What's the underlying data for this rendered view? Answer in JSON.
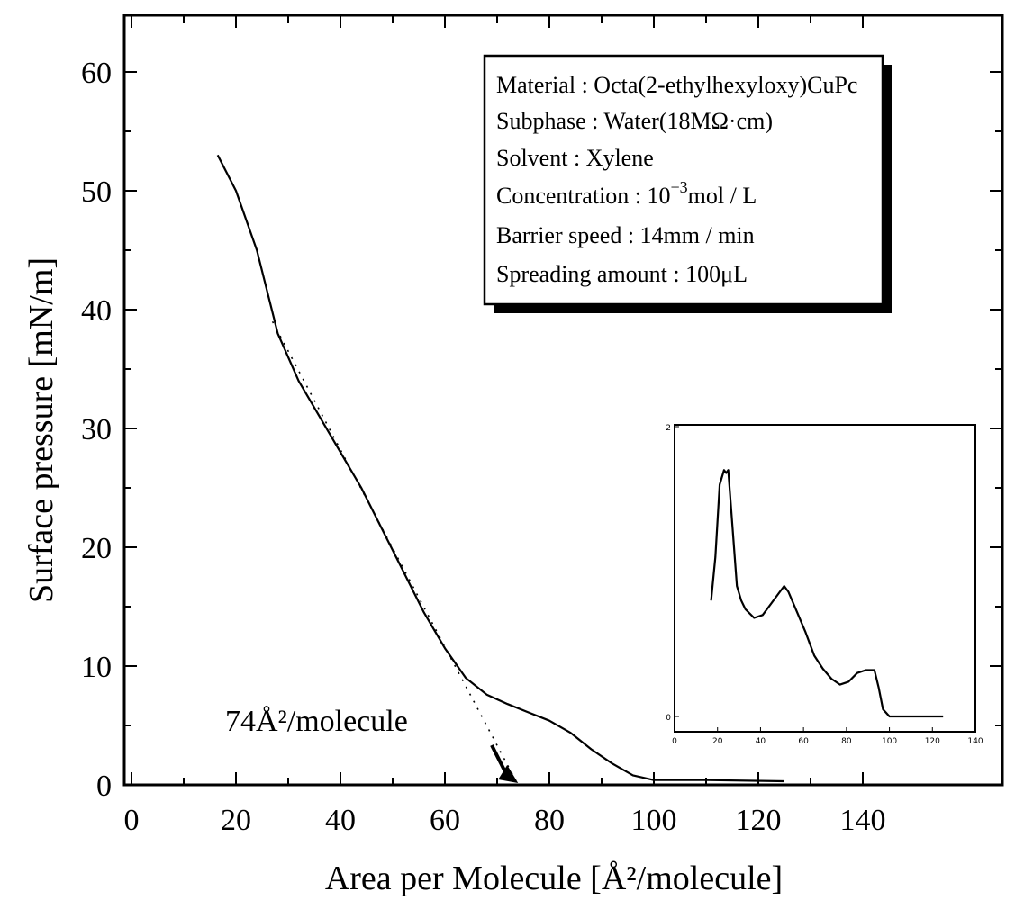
{
  "chart_data": {
    "type": "line",
    "xlabel": "Area per Molecule [Å²/molecule]",
    "ylabel": "Surface pressure [mN/m]",
    "xlim": [
      0,
      150
    ],
    "ylim": [
      0,
      65
    ],
    "x_ticks": [
      "0",
      "20",
      "40",
      "60",
      "80",
      "100",
      "120",
      "140"
    ],
    "y_ticks": [
      "0",
      "10",
      "20",
      "30",
      "40",
      "50",
      "60"
    ],
    "grid": false,
    "info_box": {
      "placement": "top-right",
      "lines": [
        {
          "label": "Material",
          "value": "Octa(2-ethylhexyloxy)CuPc"
        },
        {
          "label": "Subphase",
          "value": "Water(18MΩ·cm)"
        },
        {
          "label": "Solvent",
          "value": "Xylene"
        },
        {
          "label": "Concentration",
          "value": "10",
          "sup": "−3",
          "after": "mol / L"
        },
        {
          "label": "Barrier speed",
          "value": "14mm / min"
        },
        {
          "label": "Spreading amount",
          "value": "100μL"
        }
      ]
    },
    "annotation": {
      "text": "74Å²/molecule",
      "points_to_x": 74,
      "points_to_y": 0
    },
    "series": [
      {
        "values": [
          [
            16.5,
            53
          ],
          [
            20,
            50
          ],
          [
            24,
            45
          ],
          [
            28,
            38
          ],
          [
            32,
            34
          ],
          [
            36,
            31
          ],
          [
            40,
            28
          ],
          [
            44,
            25
          ],
          [
            48,
            21.5
          ],
          [
            52,
            18
          ],
          [
            56,
            14.5
          ],
          [
            60,
            11.5
          ],
          [
            64,
            9
          ],
          [
            68,
            7.6
          ],
          [
            72,
            6.8
          ],
          [
            76,
            6.1
          ],
          [
            80,
            5.4
          ],
          [
            84,
            4.4
          ],
          [
            88,
            3
          ],
          [
            92,
            1.8
          ],
          [
            96,
            0.8
          ],
          [
            100,
            0.4
          ],
          [
            110,
            0.4
          ],
          [
            125,
            0.3
          ]
        ]
      }
    ],
    "extrapolation": {
      "style": "dotted",
      "values": [
        [
          27,
          39
        ],
        [
          74,
          0
        ]
      ]
    },
    "inset": {
      "placement": "bottom-right",
      "x_ticks": [
        "0",
        "20",
        "40",
        "60",
        "80",
        "100",
        "120",
        "140"
      ],
      "y_ticks": [
        "0",
        "2"
      ],
      "xlim": [
        0,
        140
      ],
      "ylim": [
        0,
        2
      ],
      "series": [
        {
          "values": [
            [
              17,
              0.8
            ],
            [
              19,
              1.1
            ],
            [
              21,
              1.6
            ],
            [
              23,
              1.7
            ],
            [
              24,
              1.68
            ],
            [
              25,
              1.7
            ],
            [
              27,
              1.3
            ],
            [
              29,
              0.9
            ],
            [
              31,
              0.8
            ],
            [
              33,
              0.74
            ],
            [
              37,
              0.68
            ],
            [
              41,
              0.7
            ],
            [
              45,
              0.78
            ],
            [
              49,
              0.86
            ],
            [
              51,
              0.9
            ],
            [
              53,
              0.86
            ],
            [
              57,
              0.72
            ],
            [
              61,
              0.58
            ],
            [
              65,
              0.42
            ],
            [
              69,
              0.33
            ],
            [
              73,
              0.26
            ],
            [
              77,
              0.22
            ],
            [
              81,
              0.24
            ],
            [
              85,
              0.3
            ],
            [
              89,
              0.32
            ],
            [
              93,
              0.32
            ],
            [
              95,
              0.2
            ],
            [
              97,
              0.05
            ],
            [
              100,
              0.0
            ],
            [
              110,
              0.0
            ],
            [
              125,
              0.0
            ]
          ]
        }
      ]
    }
  }
}
